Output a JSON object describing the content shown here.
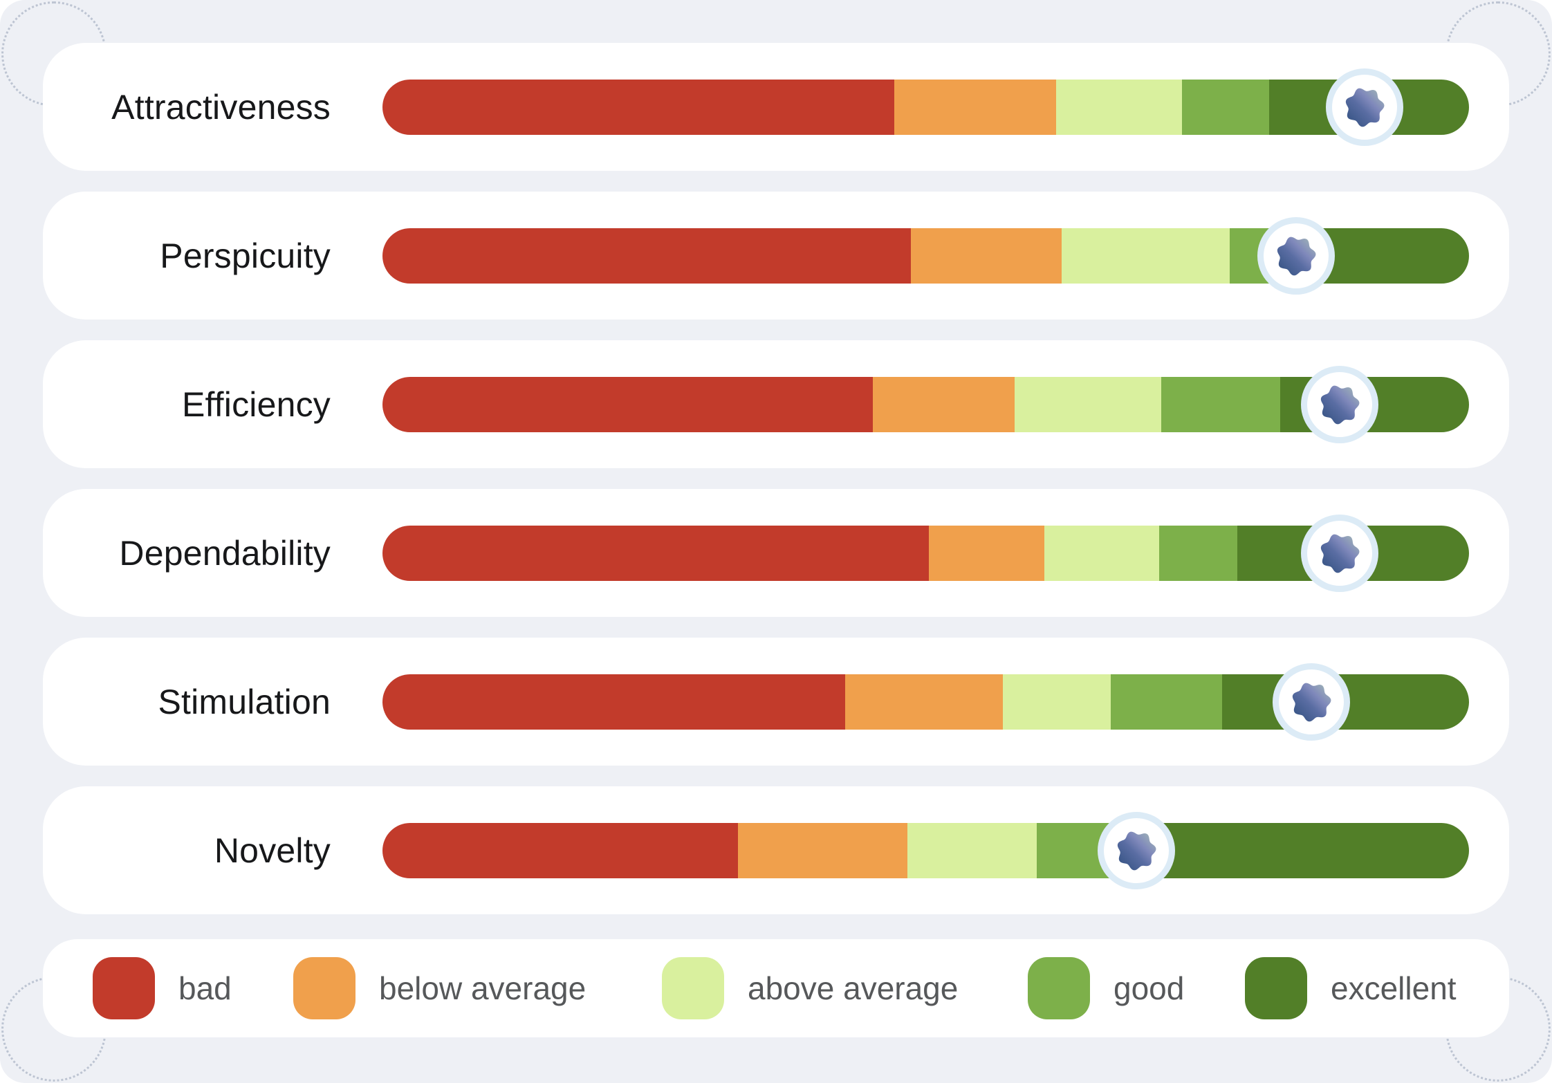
{
  "page": {
    "background_color": "#eef0f5",
    "card_color": "#ffffff",
    "label_color": "#17181a",
    "legend_text_color": "#56585a",
    "corner_dot_color": "#b4bdcc"
  },
  "chart_data": {
    "type": "bar",
    "subtype": "stacked-horizontal-benchmark",
    "title": "",
    "categories": [
      "Attractiveness",
      "Perspicuity",
      "Efficiency",
      "Dependability",
      "Stimulation",
      "Novelty"
    ],
    "legend": [
      "bad",
      "below average",
      "above average",
      "good",
      "excellent"
    ],
    "legend_position": "bottom",
    "segment_colors": [
      "#c23b2b",
      "#f0a04c",
      "#d9f09e",
      "#7db04a",
      "#527f28"
    ],
    "marker_unit": "percent-of-bar-width",
    "rows": [
      {
        "label": "Attractiveness",
        "segments_pct": [
          47.1,
          14.9,
          11.6,
          8.0,
          18.4
        ],
        "marker_pct": 90.4
      },
      {
        "label": "Perspicuity",
        "segments_pct": [
          48.6,
          13.9,
          15.5,
          6.5,
          15.5
        ],
        "marker_pct": 84.1
      },
      {
        "label": "Efficiency",
        "segments_pct": [
          45.1,
          13.1,
          13.5,
          10.9,
          17.4
        ],
        "marker_pct": 88.1
      },
      {
        "label": "Dependability",
        "segments_pct": [
          50.3,
          10.6,
          10.6,
          7.2,
          21.3
        ],
        "marker_pct": 88.1
      },
      {
        "label": "Stimulation",
        "segments_pct": [
          42.6,
          14.5,
          9.9,
          10.3,
          22.7
        ],
        "marker_pct": 85.5
      },
      {
        "label": "Novelty",
        "segments_pct": [
          32.7,
          15.6,
          11.9,
          9.5,
          30.3
        ],
        "marker_pct": 69.4
      }
    ]
  },
  "legend": {
    "items": [
      {
        "label": "bad",
        "color": "#c23b2b"
      },
      {
        "label": "below average",
        "color": "#f0a04c"
      },
      {
        "label": "above average",
        "color": "#d9f09e"
      },
      {
        "label": "good",
        "color": "#7db04a"
      },
      {
        "label": "excellent",
        "color": "#527f28"
      }
    ]
  },
  "marker": {
    "ring_color": "#dcebf6",
    "fill": "#ffffff",
    "blob_gradient": [
      "#2e4e7d",
      "#5a6da3",
      "#8089bb",
      "#a9c1b6"
    ]
  }
}
